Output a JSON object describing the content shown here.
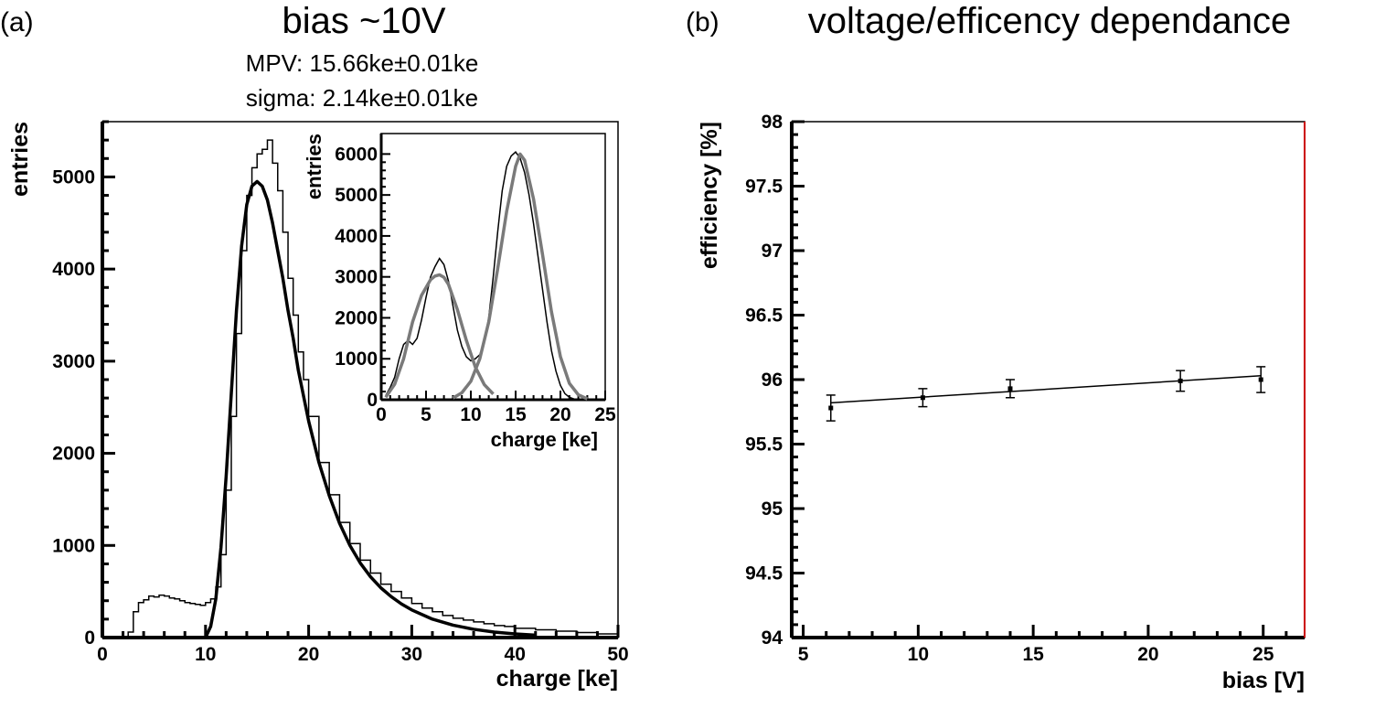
{
  "panel_a": {
    "label": "(a)",
    "title": "bias ~10V",
    "stats": {
      "mpv": "MPV:  15.66ke±0.01ke",
      "sigma": "sigma:  2.14ke±0.01ke"
    }
  },
  "panel_b": {
    "label": "(b)",
    "title": "voltage/efficency dependance"
  },
  "colors": {
    "axes": "#000000",
    "fit_inset": "#7a7a7a",
    "right_edge": "#cc0000"
  },
  "chart_data": [
    {
      "type": "line",
      "xlabel": "charge [ke]",
      "ylabel": "entries",
      "xlim": [
        0,
        50
      ],
      "ylim": [
        0,
        5600
      ],
      "xticks": [
        0,
        10,
        20,
        30,
        40,
        50
      ],
      "yticks": [
        0,
        1000,
        2000,
        3000,
        4000,
        5000
      ],
      "series": [
        {
          "style": "histogram",
          "x": [
            0,
            2.5,
            3,
            3.5,
            4,
            4.5,
            5,
            5.5,
            6,
            6.5,
            7,
            7.5,
            8,
            8.5,
            9,
            9.5,
            10,
            10.5,
            11,
            11.5,
            12,
            12.5,
            13,
            13.5,
            14,
            14.5,
            15,
            15.5,
            16,
            16.5,
            17,
            17.5,
            18,
            18.5,
            19,
            19.5,
            20,
            21,
            22,
            23,
            24,
            25,
            26,
            27,
            28,
            29,
            30,
            31,
            32,
            33,
            34,
            35,
            36,
            37,
            38,
            39,
            40,
            42,
            44,
            46,
            48,
            50
          ],
          "y": [
            0,
            60,
            280,
            380,
            410,
            450,
            440,
            460,
            450,
            430,
            420,
            400,
            380,
            370,
            360,
            350,
            380,
            420,
            550,
            900,
            1600,
            2400,
            3300,
            4200,
            4800,
            5100,
            5250,
            5300,
            5400,
            5150,
            4850,
            4400,
            3900,
            3500,
            3100,
            2800,
            2400,
            1900,
            1550,
            1250,
            1020,
            840,
            700,
            580,
            500,
            430,
            370,
            320,
            280,
            240,
            210,
            190,
            170,
            150,
            130,
            120,
            100,
            85,
            70,
            55,
            40,
            0
          ]
        },
        {
          "style": "fit",
          "x": [
            10,
            10.5,
            11,
            11.5,
            12,
            12.5,
            13,
            13.5,
            14,
            14.5,
            15,
            15.5,
            16,
            16.5,
            17,
            17.5,
            18,
            18.5,
            19,
            20,
            21,
            22,
            23,
            24,
            25,
            26,
            27,
            28,
            29,
            30,
            32,
            34,
            36,
            38,
            40,
            42
          ],
          "y": [
            0,
            120,
            420,
            980,
            1750,
            2650,
            3550,
            4250,
            4700,
            4900,
            4950,
            4900,
            4750,
            4500,
            4200,
            3900,
            3550,
            3250,
            2900,
            2350,
            1900,
            1540,
            1240,
            1000,
            810,
            660,
            540,
            445,
            365,
            300,
            200,
            135,
            90,
            60,
            40,
            26
          ]
        }
      ],
      "inset": {
        "type": "line",
        "xlabel": "charge [ke]",
        "ylabel": "entries",
        "xlim": [
          0,
          25
        ],
        "ylim": [
          0,
          6500
        ],
        "xticks": [
          0,
          5,
          10,
          15,
          20,
          25
        ],
        "yticks": [
          0,
          1000,
          2000,
          3000,
          4000,
          5000,
          6000
        ],
        "series": [
          {
            "style": "data",
            "x": [
              0.5,
              1,
              1.5,
              2,
              2.5,
              3,
              3.5,
              4,
              4.5,
              5,
              5.5,
              6,
              6.5,
              7,
              7.5,
              8,
              8.5,
              9,
              9.5,
              10,
              10.5,
              11,
              11.5,
              12,
              12.5,
              13,
              13.5,
              14,
              14.5,
              15,
              15.5,
              16,
              16.5,
              17,
              17.5,
              18,
              18.5,
              19,
              19.5,
              20,
              20.5,
              21,
              21.5,
              22
            ],
            "y": [
              100,
              300,
              550,
              1000,
              1350,
              1450,
              1350,
              1500,
              1950,
              2500,
              3000,
              3250,
              3450,
              3300,
              2900,
              2300,
              1700,
              1300,
              1050,
              950,
              1000,
              1100,
              1400,
              2000,
              3000,
              4100,
              5100,
              5700,
              5950,
              6050,
              5900,
              5550,
              5000,
              4300,
              3500,
              2700,
              1900,
              1200,
              700,
              350,
              150,
              60,
              20,
              0
            ]
          },
          {
            "style": "fit",
            "x": [
              0.5,
              1.5,
              2.5,
              3.5,
              4.5,
              5.5,
              6,
              6.5,
              7,
              7.5,
              8.5,
              9.5,
              10.5,
              11.5,
              12.5
            ],
            "y": [
              60,
              380,
              1000,
              1900,
              2550,
              2930,
              3020,
              3050,
              2990,
              2820,
              2200,
              1450,
              800,
              370,
              140
            ]
          },
          {
            "style": "fit",
            "x": [
              8,
              9,
              10,
              11,
              12,
              13,
              14,
              15,
              15.5,
              16,
              17,
              18,
              19,
              20,
              21,
              22,
              23
            ],
            "y": [
              40,
              170,
              450,
              1000,
              1900,
              3200,
              4600,
              5700,
              6000,
              5850,
              4900,
              3550,
              2150,
              1050,
              400,
              120,
              20
            ]
          }
        ]
      }
    },
    {
      "type": "scatter",
      "xlabel": "bias [V]",
      "ylabel": "efficiency [%]",
      "xlim": [
        4.5,
        26.8
      ],
      "ylim": [
        94,
        98
      ],
      "xticks": [
        5,
        10,
        15,
        20,
        25
      ],
      "yticks": [
        94,
        94.5,
        95,
        95.5,
        96,
        96.5,
        97,
        97.5,
        98
      ],
      "points": [
        {
          "x": 6.2,
          "y": 95.78,
          "err": 0.1
        },
        {
          "x": 10.2,
          "y": 95.86,
          "err": 0.07
        },
        {
          "x": 14.0,
          "y": 95.93,
          "err": 0.07
        },
        {
          "x": 21.4,
          "y": 95.99,
          "err": 0.08
        },
        {
          "x": 24.9,
          "y": 96.0,
          "err": 0.1
        }
      ],
      "fit_line": {
        "x": [
          6.2,
          24.9
        ],
        "y": [
          95.82,
          96.03
        ]
      }
    }
  ]
}
